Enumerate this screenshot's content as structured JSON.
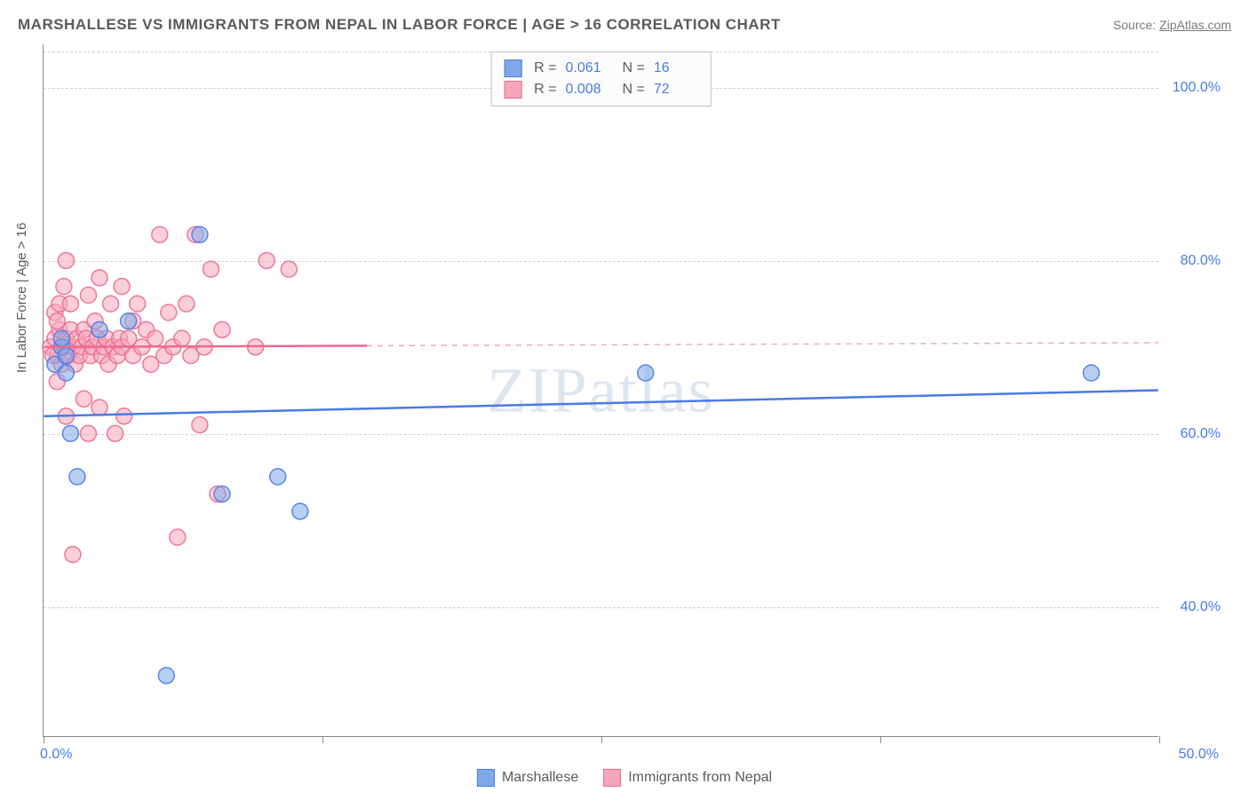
{
  "title": "MARSHALLESE VS IMMIGRANTS FROM NEPAL IN LABOR FORCE | AGE > 16 CORRELATION CHART",
  "source_label": "Source:",
  "source_name": "ZipAtlas.com",
  "watermark": "ZIPatlas",
  "y_axis_label": "In Labor Force | Age > 16",
  "chart": {
    "type": "scatter",
    "xlim": [
      0,
      50
    ],
    "ylim": [
      25,
      105
    ],
    "xtick_labels": {
      "min": "0.0%",
      "max": "50.0%"
    },
    "xtick_positions_pct": [
      0,
      25,
      50,
      75,
      100
    ],
    "yticks": [
      {
        "value": 100,
        "label": "100.0%"
      },
      {
        "value": 80,
        "label": "80.0%"
      },
      {
        "value": 60,
        "label": "60.0%"
      },
      {
        "value": 40,
        "label": "40.0%"
      }
    ],
    "grid_color": "#d0d0d0",
    "marker_radius": 9,
    "marker_opacity": 0.55,
    "marker_stroke_opacity": 0.9,
    "series": {
      "blue": {
        "name": "Marshallese",
        "color_fill": "#7fa8e8",
        "color_stroke": "#4a7ae8",
        "R": "0.061",
        "N": "16",
        "trend": {
          "y_at_x0": 62,
          "y_at_x50": 65,
          "solid_to_x": 50
        },
        "points": [
          {
            "x": 0.5,
            "y": 68
          },
          {
            "x": 0.8,
            "y": 70
          },
          {
            "x": 1.0,
            "y": 69
          },
          {
            "x": 1.2,
            "y": 60
          },
          {
            "x": 1.5,
            "y": 55
          },
          {
            "x": 2.5,
            "y": 72
          },
          {
            "x": 3.8,
            "y": 73
          },
          {
            "x": 5.5,
            "y": 32
          },
          {
            "x": 7.0,
            "y": 83
          },
          {
            "x": 8.0,
            "y": 53
          },
          {
            "x": 10.5,
            "y": 55
          },
          {
            "x": 11.5,
            "y": 51
          },
          {
            "x": 27.0,
            "y": 67
          },
          {
            "x": 47.0,
            "y": 67
          },
          {
            "x": 0.8,
            "y": 71
          },
          {
            "x": 1.0,
            "y": 67
          }
        ]
      },
      "pink": {
        "name": "Immigrants from Nepal",
        "color_fill": "#f5a8bc",
        "color_stroke": "#ec6a8e",
        "R": "0.008",
        "N": "72",
        "trend": {
          "y_at_x0": 70,
          "y_at_x50": 70.5,
          "solid_to_x": 14.5
        },
        "points": [
          {
            "x": 0.3,
            "y": 70
          },
          {
            "x": 0.5,
            "y": 71
          },
          {
            "x": 0.6,
            "y": 69
          },
          {
            "x": 0.7,
            "y": 72
          },
          {
            "x": 0.8,
            "y": 68
          },
          {
            "x": 0.9,
            "y": 70
          },
          {
            "x": 1.0,
            "y": 71
          },
          {
            "x": 1.1,
            "y": 69
          },
          {
            "x": 1.2,
            "y": 72
          },
          {
            "x": 1.3,
            "y": 70
          },
          {
            "x": 1.4,
            "y": 68
          },
          {
            "x": 1.5,
            "y": 71
          },
          {
            "x": 1.6,
            "y": 69
          },
          {
            "x": 1.7,
            "y": 70
          },
          {
            "x": 1.8,
            "y": 72
          },
          {
            "x": 1.9,
            "y": 71
          },
          {
            "x": 2.0,
            "y": 76
          },
          {
            "x": 2.1,
            "y": 69
          },
          {
            "x": 2.2,
            "y": 70
          },
          {
            "x": 2.3,
            "y": 73
          },
          {
            "x": 2.4,
            "y": 71
          },
          {
            "x": 2.5,
            "y": 78
          },
          {
            "x": 2.6,
            "y": 69
          },
          {
            "x": 2.7,
            "y": 70
          },
          {
            "x": 2.8,
            "y": 71
          },
          {
            "x": 2.9,
            "y": 68
          },
          {
            "x": 3.0,
            "y": 75
          },
          {
            "x": 3.1,
            "y": 70
          },
          {
            "x": 3.2,
            "y": 60
          },
          {
            "x": 3.3,
            "y": 69
          },
          {
            "x": 3.4,
            "y": 71
          },
          {
            "x": 3.5,
            "y": 70
          },
          {
            "x": 3.6,
            "y": 62
          },
          {
            "x": 3.8,
            "y": 71
          },
          {
            "x": 4.0,
            "y": 69
          },
          {
            "x": 4.2,
            "y": 75
          },
          {
            "x": 4.4,
            "y": 70
          },
          {
            "x": 4.6,
            "y": 72
          },
          {
            "x": 4.8,
            "y": 68
          },
          {
            "x": 5.0,
            "y": 71
          },
          {
            "x": 5.2,
            "y": 83
          },
          {
            "x": 5.4,
            "y": 69
          },
          {
            "x": 5.6,
            "y": 74
          },
          {
            "x": 5.8,
            "y": 70
          },
          {
            "x": 6.0,
            "y": 48
          },
          {
            "x": 6.2,
            "y": 71
          },
          {
            "x": 6.4,
            "y": 75
          },
          {
            "x": 6.6,
            "y": 69
          },
          {
            "x": 6.8,
            "y": 83
          },
          {
            "x": 7.0,
            "y": 61
          },
          {
            "x": 7.2,
            "y": 70
          },
          {
            "x": 7.5,
            "y": 79
          },
          {
            "x": 7.8,
            "y": 53
          },
          {
            "x": 8.0,
            "y": 72
          },
          {
            "x": 1.0,
            "y": 80
          },
          {
            "x": 1.3,
            "y": 46
          },
          {
            "x": 1.0,
            "y": 62
          },
          {
            "x": 2.0,
            "y": 60
          },
          {
            "x": 2.5,
            "y": 63
          },
          {
            "x": 0.5,
            "y": 74
          },
          {
            "x": 0.6,
            "y": 73
          },
          {
            "x": 0.7,
            "y": 75
          },
          {
            "x": 9.5,
            "y": 70
          },
          {
            "x": 10.0,
            "y": 80
          },
          {
            "x": 11.0,
            "y": 79
          },
          {
            "x": 3.5,
            "y": 77
          },
          {
            "x": 4.0,
            "y": 73
          },
          {
            "x": 0.4,
            "y": 69
          },
          {
            "x": 0.9,
            "y": 77
          },
          {
            "x": 1.2,
            "y": 75
          },
          {
            "x": 0.6,
            "y": 66
          },
          {
            "x": 1.8,
            "y": 64
          }
        ]
      }
    }
  }
}
